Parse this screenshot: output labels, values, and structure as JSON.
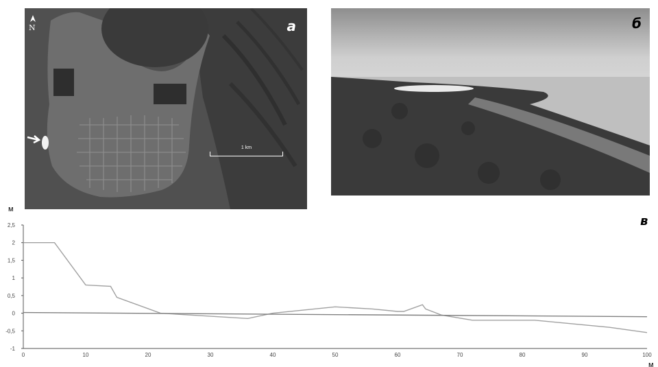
{
  "panels": {
    "a": {
      "letter": "а",
      "north": "N",
      "scale_label": "1 km"
    },
    "b": {
      "letter": "б"
    },
    "c": {
      "letter": "в"
    }
  },
  "chart_data": {
    "type": "line",
    "ylabel": "м",
    "xlabel": "м",
    "xlim": [
      0,
      100
    ],
    "ylim": [
      -1,
      2.5
    ],
    "xticks": [
      "0",
      "10",
      "20",
      "30",
      "40",
      "50",
      "60",
      "70",
      "80",
      "90",
      "100"
    ],
    "yticks": [
      "-1",
      "-0,5",
      "0",
      "0,5",
      "1",
      "1,5",
      "2",
      "2,5"
    ],
    "grid": false,
    "series": [
      {
        "color": "#a0a0a0",
        "x": [
          0,
          5,
          10,
          14,
          15,
          22,
          36,
          40,
          50,
          56,
          60,
          61,
          64,
          64.5,
          67,
          72,
          82,
          94,
          100
        ],
        "y": [
          2.0,
          2.0,
          0.8,
          0.76,
          0.45,
          0.0,
          -0.15,
          0.0,
          0.18,
          0.12,
          0.05,
          0.05,
          0.24,
          0.12,
          -0.05,
          -0.2,
          -0.2,
          -0.4,
          -0.55
        ]
      },
      {
        "color": "#808080",
        "x": [
          0,
          100
        ],
        "y": [
          0.02,
          -0.1
        ]
      }
    ]
  }
}
